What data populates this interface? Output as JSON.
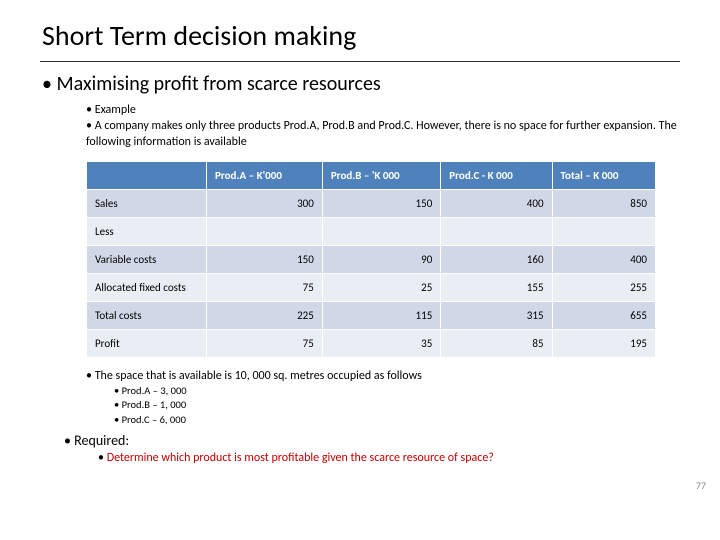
{
  "title": "Short Term decision making",
  "heading": "Maximising profit from scarce resources",
  "bullets": {
    "example": "Example",
    "description": "A company makes only three products Prod.A, Prod.B and Prod.C. However, there is no space for further expansion. The following information is available"
  },
  "table": {
    "header_bg": "#4f81bd",
    "header_fg": "#ffffff",
    "row_bg_a": "#d0d8e8",
    "row_bg_b": "#e9edf4",
    "columns": [
      "",
      "Prod.A – K'000",
      "Prod.B – 'K 000",
      "Prod.C - K 000",
      "Total – K 000"
    ],
    "rows": [
      {
        "label": "Sales",
        "vals": [
          "300",
          "150",
          "400",
          "850"
        ]
      },
      {
        "label": "Less",
        "vals": [
          "",
          "",
          "",
          ""
        ]
      },
      {
        "label": "Variable costs",
        "vals": [
          "150",
          "90",
          "160",
          "400"
        ]
      },
      {
        "label": "Allocated fixed costs",
        "vals": [
          "75",
          "25",
          "155",
          "255"
        ]
      },
      {
        "label": "Total costs",
        "vals": [
          "225",
          "115",
          "315",
          "655"
        ]
      },
      {
        "label": "Profit",
        "vals": [
          "75",
          "35",
          "85",
          "195"
        ]
      }
    ]
  },
  "space_intro": "The space that is available is 10, 000 sq. metres occupied as follows",
  "space_items": [
    "Prod.A – 3, 000",
    "Prod.B – 1, 000",
    "Prod.C – 6, 000"
  ],
  "required_label": "Required:",
  "determine": "Determine which product is most profitable given the scarce resource of space?",
  "page_number": "77",
  "accent_red": "#c00000"
}
